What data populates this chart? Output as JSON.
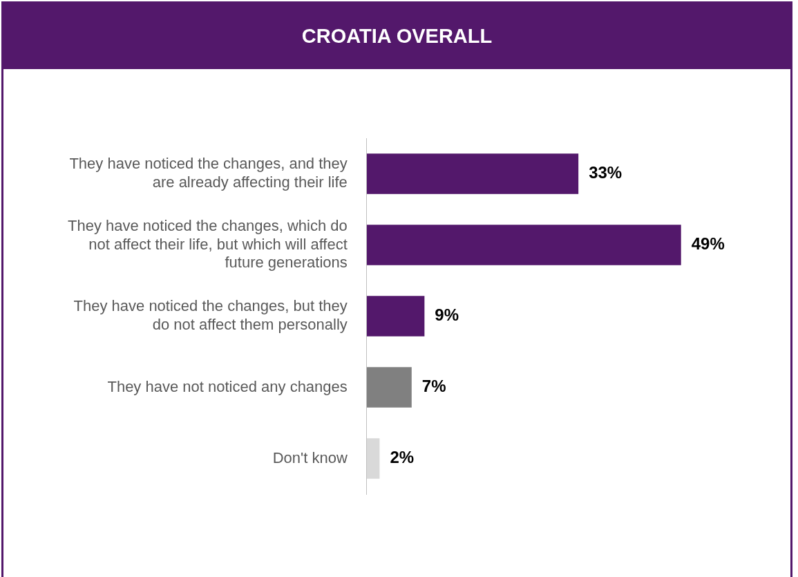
{
  "chart_data": {
    "type": "bar",
    "orientation": "horizontal",
    "title": "CROATIA OVERALL",
    "categories": [
      "They have noticed the changes, and they are already affecting their life",
      "They have noticed the changes, which do not affect their life, but which will affect future generations",
      "They have noticed the changes, but they do not affect them personally",
      "They have not noticed any changes",
      "Don't know"
    ],
    "values": [
      33,
      49,
      9,
      7,
      2
    ],
    "colors": [
      "#53186b",
      "#53186b",
      "#53186b",
      "#808080",
      "#d9d9d9"
    ],
    "value_labels": [
      "33%",
      "49%",
      "9%",
      "7%",
      "2%"
    ],
    "legend": false
  }
}
